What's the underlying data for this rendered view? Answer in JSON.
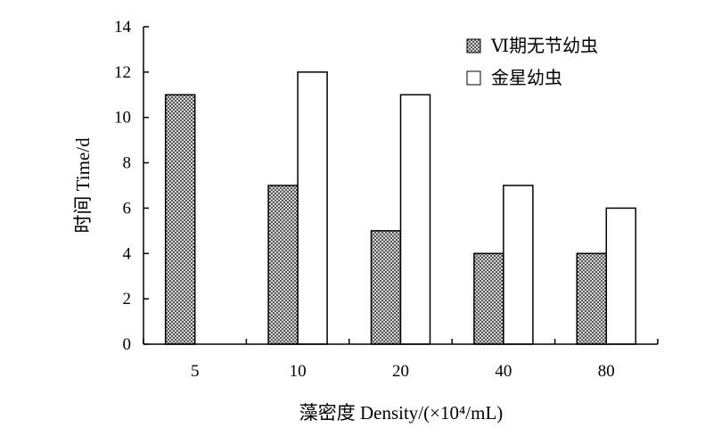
{
  "chart_data": {
    "type": "bar",
    "categories": [
      "5",
      "10",
      "20",
      "40",
      "80"
    ],
    "series": [
      {
        "name": "Ⅵ期无节幼虫",
        "values": [
          11,
          7,
          5,
          4,
          4
        ],
        "fill": "checkered"
      },
      {
        "name": "金星幼虫",
        "values": [
          null,
          12,
          11,
          7,
          6
        ],
        "fill": "#ffffff"
      }
    ],
    "xlabel": "藻密度 Density/(×10⁴/mL)",
    "ylabel": "时间 Time/d",
    "ylim": [
      0,
      14
    ],
    "yticks": [
      0,
      2,
      4,
      6,
      8,
      10,
      12,
      14
    ],
    "grid": false,
    "legend": "top-right",
    "colors": {
      "axis": "#000000",
      "bar_stroke": "#000000",
      "checker_dark": "#555555",
      "checker_light": "#d8d8d8"
    }
  }
}
